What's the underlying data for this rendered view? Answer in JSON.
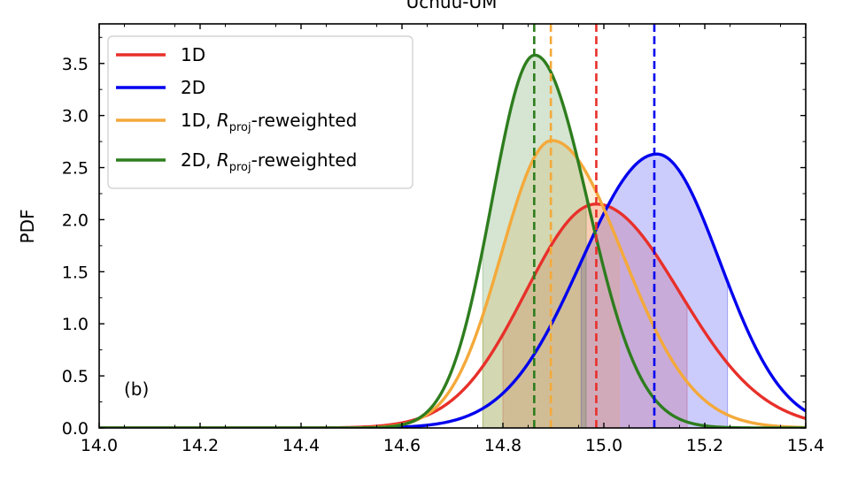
{
  "chart_data": {
    "type": "line",
    "title": "Uchuu-UM",
    "xlabel": "",
    "ylabel": "PDF",
    "xlim": [
      14.0,
      15.4
    ],
    "ylim": [
      0,
      3.88
    ],
    "x_ticks": [
      "14.0",
      "14.2",
      "14.4",
      "14.6",
      "14.8",
      "15.0",
      "15.2",
      "15.4"
    ],
    "y_ticks": [
      "0.0",
      "0.5",
      "1.0",
      "1.5",
      "2.0",
      "2.5",
      "3.0",
      "3.5"
    ],
    "annotation": "(b)",
    "legend_position": "upper-left",
    "series": [
      {
        "name": "1D",
        "color": "#e8302a",
        "peak_x": 14.985,
        "peak_y": 2.15,
        "sigma_left": 0.14,
        "sigma_right": 0.165,
        "median": 14.985,
        "band": [
          14.8,
          15.165
        ]
      },
      {
        "name": "2D",
        "color": "#0000ee",
        "peak_x": 15.105,
        "peak_y": 2.63,
        "sigma_left": 0.15,
        "sigma_right": 0.125,
        "median": 15.1,
        "band": [
          14.955,
          15.245
        ]
      },
      {
        "name": "1D, ",
        "name_italic": "R",
        "name_sub": "proj",
        "name_suffix": "-reweighted",
        "color": "#f4a93a",
        "peak_x": 14.897,
        "peak_y": 2.76,
        "sigma_left": 0.1,
        "sigma_right": 0.14,
        "median": 14.895,
        "band": [
          14.76,
          15.03
        ]
      },
      {
        "name": "2D, ",
        "name_italic": "R",
        "name_sub": "proj",
        "name_suffix": "-reweighted",
        "color": "#2e7d1e",
        "peak_x": 14.863,
        "peak_y": 3.58,
        "sigma_left": 0.085,
        "sigma_right": 0.105,
        "median": 14.862,
        "band": [
          14.76,
          14.965
        ]
      }
    ]
  }
}
